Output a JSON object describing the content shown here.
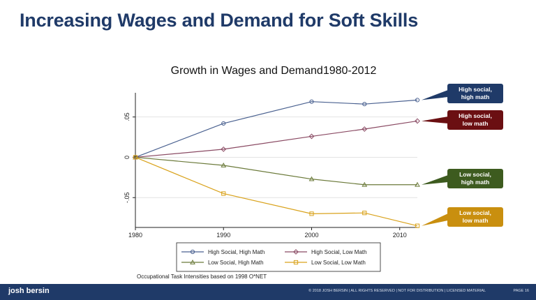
{
  "slide": {
    "title": "Increasing Wages and Demand for Soft Skills",
    "footer_brand": "josh bersin",
    "footer_notice": "© 2018 JOSH BERSIN | ALL RIGHTS RESERVED | NOT FOR DISTRIBUTION | LICENSED MATERIAL",
    "page_label": "PAGE 16"
  },
  "chart_data": {
    "type": "line",
    "title": "Growth in Wages and Demand1980-2012",
    "note": "Occupational Task Intensities based on 1998 O*NET",
    "xlim": [
      1980,
      2012
    ],
    "ylim": [
      -0.087,
      0.08
    ],
    "xticks": [
      1980,
      1990,
      2000,
      2010
    ],
    "yticks": [
      -0.05,
      0,
      0.05
    ],
    "ytick_labels": [
      "-.05",
      "0",
      ".05"
    ],
    "grid": "horizontal",
    "legend_position": "bottom",
    "series": [
      {
        "name": "High Social, High Math",
        "marker": "circle",
        "color": "#4a6190",
        "x": [
          1980,
          1990,
          2000,
          2006,
          2012
        ],
        "y": [
          0.0,
          0.042,
          0.069,
          0.066,
          0.071
        ],
        "callout": "High social,\nhigh math",
        "callout_color": "#1f3a68"
      },
      {
        "name": "High Social, Low Math",
        "marker": "diamond",
        "color": "#8a4a63",
        "x": [
          1980,
          1990,
          2000,
          2006,
          2012
        ],
        "y": [
          0.0,
          0.01,
          0.026,
          0.035,
          0.045
        ],
        "callout": "High social,\nlow math",
        "callout_color": "#6b0f12"
      },
      {
        "name": "Low Social, High Math",
        "marker": "triangle",
        "color": "#6b7a3a",
        "x": [
          1980,
          1990,
          2000,
          2006,
          2012
        ],
        "y": [
          0.0,
          -0.01,
          -0.027,
          -0.034,
          -0.034
        ],
        "callout": "Low social,\nhigh math",
        "callout_color": "#3d5b1f"
      },
      {
        "name": "Low Social, Low Math",
        "marker": "square",
        "color": "#d9a21b",
        "x": [
          1980,
          1990,
          2000,
          2006,
          2012
        ],
        "y": [
          0.0,
          -0.045,
          -0.07,
          -0.069,
          -0.085
        ],
        "callout": "Low social,\nlow math",
        "callout_color": "#c98f0f"
      }
    ]
  }
}
